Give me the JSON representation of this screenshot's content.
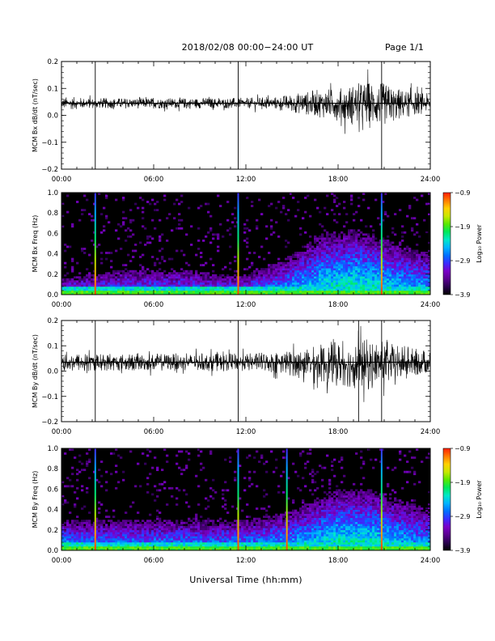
{
  "header": {
    "title": "2018/02/08  00:00−24:00 UT",
    "page": "Page 1/1"
  },
  "colors": {
    "background": "#ffffff",
    "trace": "#000000",
    "spectrogram_floor": "#000000",
    "colormap": [
      "#000000",
      "#2a004f",
      "#5a0090",
      "#7a00c8",
      "#3a2cff",
      "#0070ff",
      "#00b4ff",
      "#00e8c8",
      "#00e85a",
      "#5ae800",
      "#c8e800",
      "#ffd000",
      "#ff7a00",
      "#ff1e00"
    ]
  },
  "chart_data": [
    {
      "type": "line",
      "ylabel": "MCM Bx dB/dt (nT/sec)",
      "xlim": [
        "00:00",
        "24:00"
      ],
      "ylim": [
        -0.2,
        0.2
      ],
      "xticks": [
        "00:00",
        "06:00",
        "12:00",
        "18:00",
        "24:00"
      ],
      "yticks": [
        "0.2",
        "0.1",
        "0.0",
        "−0.1",
        "−0.2"
      ],
      "baseline": 0.045,
      "series": [
        {
          "x": [
            "00:00",
            "02:00",
            "04:00",
            "06:00",
            "08:00",
            "10:00",
            "12:00",
            "14:00",
            "16:00",
            "17:00",
            "18:00",
            "19:00",
            "20:00",
            "21:00",
            "22:00",
            "23:00",
            "24:00"
          ],
          "upper": [
            0.07,
            0.065,
            0.065,
            0.065,
            0.065,
            0.065,
            0.065,
            0.07,
            0.09,
            0.1,
            0.1,
            0.12,
            0.13,
            0.12,
            0.1,
            0.09,
            0.08
          ],
          "lower": [
            0.02,
            0.025,
            0.025,
            0.025,
            0.025,
            0.025,
            0.025,
            0.02,
            0.0,
            -0.01,
            -0.02,
            -0.04,
            -0.05,
            -0.04,
            -0.02,
            0.0,
            0.01
          ]
        }
      ],
      "spikes": [
        {
          "x": "02:12",
          "y_top": 0.2,
          "y_bottom": -0.2
        },
        {
          "x": "11:30",
          "y_top": 0.2,
          "y_bottom": -0.2
        },
        {
          "x": "20:50",
          "y_top": 0.2,
          "y_bottom": -0.2
        }
      ]
    },
    {
      "type": "heatmap",
      "ylabel": "MCM Bx Freq (Hz)",
      "xlim": [
        "00:00",
        "24:00"
      ],
      "ylim": [
        0,
        1.0
      ],
      "xticks": [
        "00:00",
        "06:00",
        "12:00",
        "18:00",
        "24:00"
      ],
      "yticks": [
        "1.0",
        "0.8",
        "0.6",
        "0.4",
        "0.2",
        "0.0"
      ],
      "colorbar": {
        "label": "Log₁₀ Power",
        "range": [
          -3.9,
          -0.9
        ],
        "ticks": [
          "−0.9",
          "−1.9",
          "−2.9",
          "−3.9"
        ]
      },
      "activity": {
        "x": [
          "00:00",
          "02:00",
          "04:00",
          "06:00",
          "08:00",
          "10:00",
          "12:00",
          "14:00",
          "16:00",
          "17:00",
          "18:00",
          "19:00",
          "20:00",
          "21:00",
          "22:00",
          "23:00",
          "24:00"
        ],
        "top_freq": [
          0.15,
          0.2,
          0.25,
          0.25,
          0.25,
          0.2,
          0.2,
          0.3,
          0.5,
          0.6,
          0.6,
          0.65,
          0.6,
          0.55,
          0.5,
          0.45,
          0.4
        ],
        "level": [
          0.45,
          0.4,
          0.4,
          0.4,
          0.4,
          0.4,
          0.45,
          0.5,
          0.6,
          0.65,
          0.7,
          0.7,
          0.7,
          0.65,
          0.6,
          0.55,
          0.55
        ]
      },
      "spikes": [
        "02:12",
        "11:30",
        "20:50"
      ]
    },
    {
      "type": "line",
      "ylabel": "MCM By dB/dt (nT/sec)",
      "xlim": [
        "00:00",
        "24:00"
      ],
      "ylim": [
        -0.2,
        0.2
      ],
      "xticks": [
        "00:00",
        "06:00",
        "12:00",
        "18:00",
        "24:00"
      ],
      "yticks": [
        "0.2",
        "0.1",
        "0.0",
        "−0.1",
        "−0.2"
      ],
      "baseline": 0.035,
      "series": [
        {
          "x": [
            "00:00",
            "02:00",
            "04:00",
            "06:00",
            "08:00",
            "10:00",
            "12:00",
            "14:00",
            "16:00",
            "17:00",
            "18:00",
            "19:00",
            "20:00",
            "21:00",
            "22:00",
            "23:00",
            "24:00"
          ],
          "upper": [
            0.08,
            0.07,
            0.07,
            0.07,
            0.07,
            0.07,
            0.07,
            0.08,
            0.09,
            0.11,
            0.12,
            0.12,
            0.13,
            0.12,
            0.1,
            0.09,
            0.08
          ],
          "lower": [
            -0.01,
            0.0,
            0.0,
            0.0,
            0.0,
            0.0,
            0.0,
            -0.01,
            -0.03,
            -0.05,
            -0.06,
            -0.07,
            -0.08,
            -0.06,
            -0.04,
            -0.02,
            -0.01
          ]
        }
      ],
      "spikes": [
        {
          "x": "02:12",
          "y_top": 0.2,
          "y_bottom": -0.2
        },
        {
          "x": "11:30",
          "y_top": 0.2,
          "y_bottom": -0.2
        },
        {
          "x": "19:20",
          "y_top": 0.2,
          "y_bottom": -0.2
        },
        {
          "x": "20:50",
          "y_top": 0.2,
          "y_bottom": -0.2
        }
      ]
    },
    {
      "type": "heatmap",
      "ylabel": "MCM By Freq (Hz)",
      "xlim": [
        "00:00",
        "24:00"
      ],
      "ylim": [
        0,
        1.0
      ],
      "xticks": [
        "00:00",
        "06:00",
        "12:00",
        "18:00",
        "24:00"
      ],
      "yticks": [
        "1.0",
        "0.8",
        "0.6",
        "0.4",
        "0.2",
        "0.0"
      ],
      "colorbar": {
        "label": "Log₁₀ Power",
        "range": [
          -3.9,
          -0.9
        ],
        "ticks": [
          "−0.9",
          "−1.9",
          "−2.9",
          "−3.9"
        ]
      },
      "activity": {
        "x": [
          "00:00",
          "02:00",
          "04:00",
          "06:00",
          "08:00",
          "10:00",
          "12:00",
          "14:00",
          "16:00",
          "17:00",
          "18:00",
          "19:00",
          "20:00",
          "21:00",
          "22:00",
          "23:00",
          "24:00"
        ],
        "top_freq": [
          0.3,
          0.3,
          0.3,
          0.3,
          0.3,
          0.3,
          0.3,
          0.35,
          0.45,
          0.55,
          0.6,
          0.6,
          0.6,
          0.55,
          0.5,
          0.45,
          0.4
        ],
        "level": [
          0.55,
          0.5,
          0.5,
          0.5,
          0.5,
          0.5,
          0.5,
          0.55,
          0.6,
          0.65,
          0.7,
          0.7,
          0.7,
          0.65,
          0.6,
          0.55,
          0.55
        ]
      },
      "spikes": [
        "02:12",
        "11:30",
        "14:40",
        "20:50"
      ]
    }
  ],
  "xlabel": "Universal Time (hh:mm)"
}
